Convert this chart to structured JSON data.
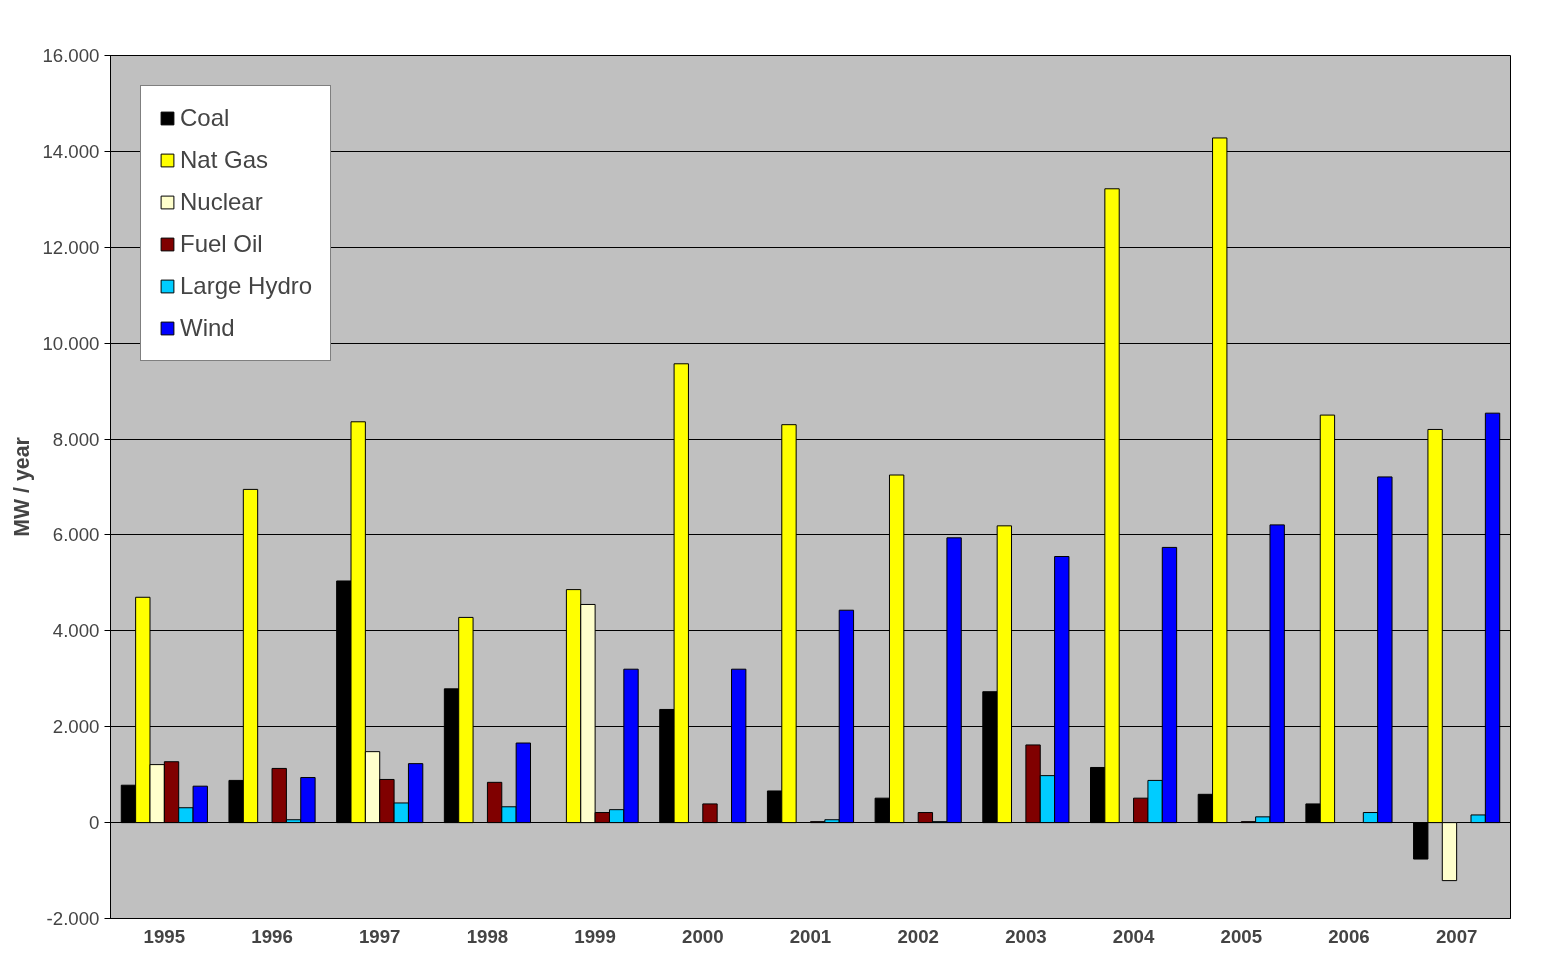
{
  "chart_data": {
    "type": "bar",
    "ylabel": "MW / year",
    "categories": [
      "1995",
      "1996",
      "1997",
      "1998",
      "1999",
      "2000",
      "2001",
      "2002",
      "2003",
      "2004",
      "2005",
      "2006",
      "2007"
    ],
    "series": [
      {
        "name": "Coal",
        "color": "#000000",
        "values": [
          780,
          880,
          5040,
          2790,
          null,
          2360,
          660,
          510,
          2730,
          1150,
          590,
          390,
          -760
        ]
      },
      {
        "name": "Nat Gas",
        "color": "#ffff00",
        "values": [
          4700,
          6950,
          8360,
          4280,
          4860,
          9570,
          8300,
          7250,
          6190,
          13220,
          14280,
          8500,
          8200
        ]
      },
      {
        "name": "Nuclear",
        "color": "#ffffcc",
        "values": [
          1210,
          null,
          1480,
          null,
          4550,
          null,
          null,
          null,
          null,
          null,
          null,
          null,
          -1210
        ]
      },
      {
        "name": "Fuel Oil",
        "color": "#800000",
        "values": [
          1270,
          1130,
          900,
          840,
          210,
          390,
          20,
          210,
          1620,
          510,
          20,
          null,
          null
        ]
      },
      {
        "name": "Large Hydro",
        "color": "#00ccff",
        "values": [
          310,
          60,
          410,
          330,
          270,
          null,
          60,
          20,
          980,
          880,
          120,
          210,
          160
        ]
      },
      {
        "name": "Wind",
        "color": "#0000ff",
        "values": [
          760,
          940,
          1230,
          1660,
          3200,
          3200,
          4430,
          5940,
          5550,
          5740,
          6210,
          7210,
          8540
        ]
      }
    ],
    "ylim": [
      -2000,
      16000
    ],
    "yticks": [
      {
        "value": -2000,
        "label": "-2.000"
      },
      {
        "value": 0,
        "label": "0"
      },
      {
        "value": 2000,
        "label": "2.000"
      },
      {
        "value": 4000,
        "label": "4.000"
      },
      {
        "value": 6000,
        "label": "6.000"
      },
      {
        "value": 8000,
        "label": "8.000"
      },
      {
        "value": 10000,
        "label": "10.000"
      },
      {
        "value": 12000,
        "label": "12.000"
      },
      {
        "value": 14000,
        "label": "14.000"
      },
      {
        "value": 16000,
        "label": "16.000"
      }
    ],
    "grid": "y",
    "legend": "top left"
  }
}
